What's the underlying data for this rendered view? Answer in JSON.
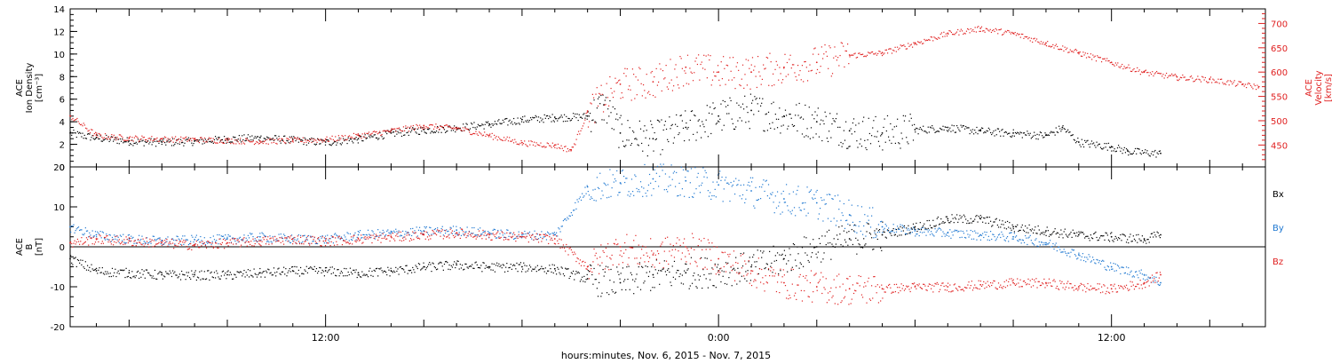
{
  "xlabel": "hours:minutes, Nov.  6, 2015 - Nov.  7, 2015",
  "colors": {
    "black": "#000000",
    "red": "#e02020",
    "blue": "#1f78d1"
  },
  "x_axis": {
    "unit": "hours since 2015-11-06 00:00",
    "range": [
      4.2,
      40.7
    ],
    "ticks": [
      {
        "value": 12,
        "label": "12:00"
      },
      {
        "value": 24,
        "label": "0:00"
      },
      {
        "value": 36,
        "label": "12:00"
      }
    ]
  },
  "chart_data": [
    {
      "type": "scatter",
      "ylabel": [
        "ACE",
        "Ion Density",
        "[cm⁻³]"
      ],
      "ylabel_right": [
        "ACE",
        "Velocity",
        "[km/s]"
      ],
      "ylim": [
        0,
        14
      ],
      "yticks": [
        "0",
        "2",
        "4",
        "6",
        "8",
        "10",
        "12",
        "14"
      ],
      "ylim_right": [
        405,
        730
      ],
      "yticks_right": [
        "450",
        "500",
        "550",
        "600",
        "650",
        "700"
      ],
      "series": [
        {
          "key": "density",
          "color": "black",
          "axis": "left",
          "points": [
            [
              4.2,
              3
            ],
            [
              5,
              2.6
            ],
            [
              6,
              2.3
            ],
            [
              7,
              2.2
            ],
            [
              8,
              2.3
            ],
            [
              9,
              2.5
            ],
            [
              10,
              2.6
            ],
            [
              11,
              2.4
            ],
            [
              12,
              2.2
            ],
            [
              13,
              2.5
            ],
            [
              14,
              3
            ],
            [
              15,
              3.3
            ],
            [
              16,
              3.5
            ],
            [
              17,
              3.8
            ],
            [
              18,
              4.2
            ],
            [
              19,
              4.4
            ],
            [
              20,
              4.5
            ],
            [
              20.5,
              5.5
            ],
            [
              21,
              3
            ],
            [
              22,
              2.5
            ],
            [
              23,
              3.5
            ],
            [
              24,
              4.5
            ],
            [
              25,
              5
            ],
            [
              26,
              4.5
            ],
            [
              27,
              4
            ],
            [
              28,
              3.2
            ],
            [
              29,
              3
            ],
            [
              30,
              3.3
            ],
            [
              31,
              3.5
            ],
            [
              32,
              3.2
            ],
            [
              33,
              3
            ],
            [
              34,
              2.8
            ],
            [
              34.5,
              3.5
            ],
            [
              35,
              2.2
            ],
            [
              36,
              1.8
            ],
            [
              36.5,
              1.4
            ],
            [
              37.5,
              1.2
            ]
          ]
        },
        {
          "key": "velocity",
          "color": "red",
          "axis": "right",
          "points": [
            [
              4.2,
              510
            ],
            [
              5,
              470
            ],
            [
              6,
              465
            ],
            [
              7,
              463
            ],
            [
              8,
              462
            ],
            [
              9,
              460
            ],
            [
              10,
              458
            ],
            [
              11,
              460
            ],
            [
              12,
              462
            ],
            [
              13,
              470
            ],
            [
              14,
              480
            ],
            [
              15,
              490
            ],
            [
              16,
              485
            ],
            [
              17,
              470
            ],
            [
              18,
              455
            ],
            [
              19,
              450
            ],
            [
              19.5,
              440
            ],
            [
              20,
              520
            ],
            [
              21,
              575
            ],
            [
              22,
              580
            ],
            [
              23,
              610
            ],
            [
              24,
              600
            ],
            [
              25,
              600
            ],
            [
              26,
              610
            ],
            [
              27,
              620
            ],
            [
              28,
              635
            ],
            [
              29,
              640
            ],
            [
              30,
              660
            ],
            [
              31,
              680
            ],
            [
              32,
              690
            ],
            [
              33,
              680
            ],
            [
              34,
              660
            ],
            [
              35,
              640
            ],
            [
              36,
              620
            ],
            [
              37,
              600
            ],
            [
              38,
              590
            ],
            [
              39,
              585
            ],
            [
              40,
              575
            ],
            [
              40.5,
              570
            ]
          ]
        }
      ]
    },
    {
      "type": "scatter",
      "ylabel": [
        "ACE",
        "B",
        "[nT]"
      ],
      "ylim": [
        -20,
        20
      ],
      "yticks": [
        "-20",
        "-10",
        "0",
        "10",
        "20"
      ],
      "legend": [
        "Bx",
        "By",
        "Bz"
      ],
      "series": [
        {
          "key": "bx",
          "name": "Bx",
          "color": "black",
          "points": [
            [
              4.2,
              -3
            ],
            [
              5,
              -6
            ],
            [
              6,
              -6.5
            ],
            [
              7,
              -7
            ],
            [
              8,
              -7
            ],
            [
              9,
              -7
            ],
            [
              10,
              -6.5
            ],
            [
              11,
              -6
            ],
            [
              12,
              -6
            ],
            [
              13,
              -6.5
            ],
            [
              14,
              -6
            ],
            [
              15,
              -5
            ],
            [
              16,
              -4.5
            ],
            [
              17,
              -5
            ],
            [
              18,
              -5
            ],
            [
              19,
              -5.5
            ],
            [
              20,
              -8
            ],
            [
              21,
              -9
            ],
            [
              22,
              -7
            ],
            [
              23,
              -6.5
            ],
            [
              24,
              -6
            ],
            [
              25,
              -5
            ],
            [
              26,
              -3
            ],
            [
              27,
              0
            ],
            [
              28,
              2
            ],
            [
              29,
              3
            ],
            [
              30,
              5
            ],
            [
              31,
              7
            ],
            [
              32,
              7
            ],
            [
              33,
              5
            ],
            [
              34,
              4
            ],
            [
              35,
              3
            ],
            [
              36,
              2.5
            ],
            [
              37,
              2
            ],
            [
              37.5,
              3
            ]
          ]
        },
        {
          "key": "by",
          "name": "By",
          "color": "blue",
          "points": [
            [
              4.2,
              5
            ],
            [
              5,
              3
            ],
            [
              6,
              2
            ],
            [
              7,
              1.5
            ],
            [
              8,
              1.8
            ],
            [
              9,
              2
            ],
            [
              10,
              2.5
            ],
            [
              11,
              2
            ],
            [
              12,
              2
            ],
            [
              13,
              3
            ],
            [
              14,
              3.5
            ],
            [
              15,
              4
            ],
            [
              16,
              4.2
            ],
            [
              17,
              3.5
            ],
            [
              18,
              3
            ],
            [
              19,
              3
            ],
            [
              20,
              15
            ],
            [
              21,
              16
            ],
            [
              22,
              17
            ],
            [
              23,
              16.5
            ],
            [
              24,
              15.5
            ],
            [
              25,
              14
            ],
            [
              26,
              12
            ],
            [
              27,
              11
            ],
            [
              28,
              8
            ],
            [
              29,
              5
            ],
            [
              30,
              4
            ],
            [
              31,
              3.5
            ],
            [
              32,
              3
            ],
            [
              33,
              2.5
            ],
            [
              34,
              1
            ],
            [
              35,
              -2
            ],
            [
              36,
              -5
            ],
            [
              37,
              -7
            ],
            [
              37.5,
              -9
            ]
          ]
        },
        {
          "key": "bz",
          "name": "Bz",
          "color": "red",
          "points": [
            [
              4.2,
              1
            ],
            [
              5,
              2
            ],
            [
              6,
              1.5
            ],
            [
              7,
              1
            ],
            [
              8,
              0.5
            ],
            [
              9,
              1
            ],
            [
              10,
              1.5
            ],
            [
              11,
              2
            ],
            [
              12,
              1.5
            ],
            [
              13,
              2
            ],
            [
              14,
              2.5
            ],
            [
              15,
              3
            ],
            [
              16,
              3.5
            ],
            [
              17,
              3
            ],
            [
              18,
              2.5
            ],
            [
              19,
              2
            ],
            [
              20,
              -5
            ],
            [
              21,
              0
            ],
            [
              22,
              -2
            ],
            [
              23,
              0
            ],
            [
              24,
              -3
            ],
            [
              25,
              -6
            ],
            [
              26,
              -9
            ],
            [
              27,
              -10
            ],
            [
              28,
              -10.5
            ],
            [
              29,
              -10.5
            ],
            [
              30,
              -10
            ],
            [
              31,
              -10
            ],
            [
              32,
              -9.5
            ],
            [
              33,
              -9
            ],
            [
              34,
              -9
            ],
            [
              35,
              -10
            ],
            [
              36,
              -10.5
            ],
            [
              37,
              -9
            ],
            [
              37.5,
              -7
            ]
          ]
        }
      ]
    }
  ]
}
